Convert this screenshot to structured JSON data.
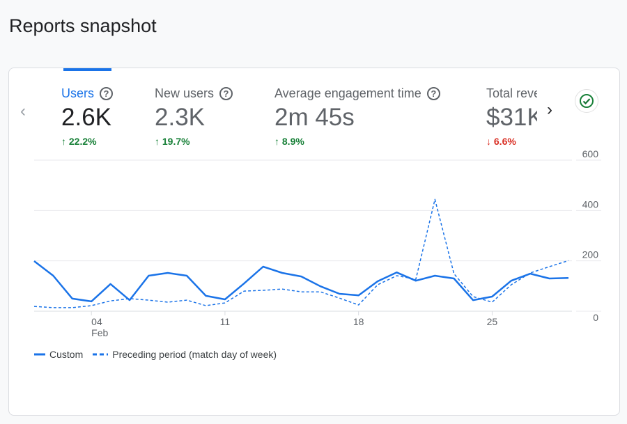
{
  "page_title": "Reports snapshot",
  "metrics": [
    {
      "label": "Users",
      "value": "2.6K",
      "change": "22.2%",
      "direction": "up",
      "active": true
    },
    {
      "label": "New users",
      "value": "2.3K",
      "change": "19.7%",
      "direction": "up"
    },
    {
      "label": "Average engagement time",
      "value": "2m 45s",
      "change": "8.9%",
      "direction": "up"
    },
    {
      "label": "Total reve",
      "value": "$31K",
      "change": "6.6%",
      "direction": "down"
    }
  ],
  "icons": {
    "help": "?",
    "prev": "‹",
    "next": "›",
    "up": "↑",
    "down": "↓"
  },
  "colors": {
    "accent": "#1a73e8",
    "up": "#188038",
    "down": "#d93025"
  },
  "chart_data": {
    "type": "line",
    "x": [
      "01",
      "02",
      "03",
      "04",
      "05",
      "06",
      "07",
      "08",
      "09",
      "10",
      "11",
      "12",
      "13",
      "14",
      "15",
      "16",
      "17",
      "18",
      "19",
      "20",
      "21",
      "22",
      "23",
      "24",
      "25",
      "26",
      "27",
      "28",
      "29"
    ],
    "x_tick_labels": [
      {
        "x": "04",
        "label": "04",
        "sub": "Feb"
      },
      {
        "x": "11",
        "label": "11"
      },
      {
        "x": "18",
        "label": "18"
      },
      {
        "x": "25",
        "label": "25"
      }
    ],
    "y_ticks": [
      "0",
      "200",
      "400",
      "600"
    ],
    "ylim": [
      0,
      600
    ],
    "y_axis_side": "right",
    "grid": true,
    "legend_position": "bottom-left",
    "series": [
      {
        "name": "Custom",
        "style": "solid",
        "values": [
          199,
          141,
          50,
          39,
          108,
          44,
          141,
          152,
          141,
          61,
          47,
          110,
          177,
          152,
          138,
          99,
          69,
          63,
          119,
          154,
          121,
          141,
          130,
          44,
          58,
          121,
          149,
          130,
          132
        ]
      },
      {
        "name": "Preceding period (match day of week)",
        "style": "dashed",
        "values": [
          19,
          14,
          14,
          22,
          41,
          50,
          44,
          36,
          44,
          22,
          33,
          80,
          83,
          88,
          77,
          77,
          52,
          25,
          105,
          141,
          127,
          444,
          149,
          58,
          36,
          105,
          152,
          177,
          201
        ]
      }
    ]
  }
}
